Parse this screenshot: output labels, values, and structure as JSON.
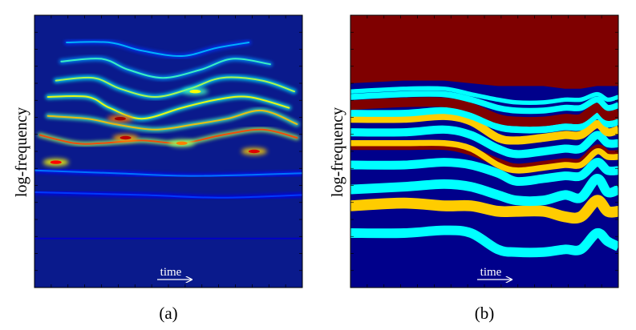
{
  "chart_data": [
    {
      "type": "heatmap",
      "panel_label": "(a)",
      "ylabel": "log-frequency",
      "time_label": "time",
      "colormap": [
        "#00007f",
        "#0000ff",
        "#00ffff",
        "#ffff00",
        "#ff0000",
        "#7f0000"
      ],
      "background_color": "#0a1a8c",
      "xlim": [
        0,
        1
      ],
      "ylim": [
        0,
        1
      ],
      "ridges": [
        {
          "points": [
            [
              0.02,
              0.56
            ],
            [
              0.15,
              0.53
            ],
            [
              0.25,
              0.53
            ],
            [
              0.4,
              0.54
            ],
            [
              0.55,
              0.53
            ],
            [
              0.7,
              0.56
            ],
            [
              0.85,
              0.58
            ],
            [
              0.98,
              0.55
            ]
          ],
          "intensity": 0.75
        },
        {
          "points": [
            [
              0.05,
              0.63
            ],
            [
              0.2,
              0.62
            ],
            [
              0.3,
              0.6
            ],
            [
              0.45,
              0.58
            ],
            [
              0.6,
              0.6
            ],
            [
              0.72,
              0.62
            ],
            [
              0.85,
              0.65
            ],
            [
              0.98,
              0.6
            ]
          ],
          "intensity": 0.65
        },
        {
          "points": [
            [
              0.05,
              0.7
            ],
            [
              0.2,
              0.7
            ],
            [
              0.28,
              0.66
            ],
            [
              0.4,
              0.62
            ],
            [
              0.55,
              0.66
            ],
            [
              0.68,
              0.69
            ],
            [
              0.8,
              0.7
            ],
            [
              0.95,
              0.66
            ]
          ],
          "intensity": 0.6
        },
        {
          "points": [
            [
              0.08,
              0.76
            ],
            [
              0.22,
              0.77
            ],
            [
              0.32,
              0.73
            ],
            [
              0.45,
              0.7
            ],
            [
              0.58,
              0.73
            ],
            [
              0.7,
              0.77
            ],
            [
              0.85,
              0.76
            ],
            [
              0.97,
              0.72
            ]
          ],
          "intensity": 0.55
        },
        {
          "points": [
            [
              0.1,
              0.83
            ],
            [
              0.25,
              0.84
            ],
            [
              0.35,
              0.8
            ],
            [
              0.48,
              0.77
            ],
            [
              0.62,
              0.8
            ],
            [
              0.74,
              0.84
            ],
            [
              0.88,
              0.82
            ]
          ],
          "intensity": 0.45
        },
        {
          "points": [
            [
              0.12,
              0.9
            ],
            [
              0.28,
              0.9
            ],
            [
              0.4,
              0.87
            ],
            [
              0.55,
              0.85
            ],
            [
              0.68,
              0.88
            ],
            [
              0.8,
              0.9
            ]
          ],
          "intensity": 0.35
        },
        {
          "points": [
            [
              0.0,
              0.43
            ],
            [
              0.3,
              0.42
            ],
            [
              0.6,
              0.41
            ],
            [
              1.0,
              0.42
            ]
          ],
          "intensity": 0.3
        },
        {
          "points": [
            [
              0.0,
              0.35
            ],
            [
              0.4,
              0.34
            ],
            [
              0.7,
              0.33
            ],
            [
              1.0,
              0.34
            ]
          ],
          "intensity": 0.25
        },
        {
          "points": [
            [
              0.0,
              0.18
            ],
            [
              0.5,
              0.18
            ],
            [
              1.0,
              0.18
            ]
          ],
          "intensity": 0.12
        }
      ],
      "hotspots": [
        {
          "t": 0.32,
          "f": 0.62,
          "intensity": 0.95
        },
        {
          "t": 0.34,
          "f": 0.55,
          "intensity": 0.9
        },
        {
          "t": 0.08,
          "f": 0.46,
          "intensity": 0.8
        },
        {
          "t": 0.82,
          "f": 0.5,
          "intensity": 0.85
        },
        {
          "t": 0.55,
          "f": 0.53,
          "intensity": 0.7
        },
        {
          "t": 0.6,
          "f": 0.72,
          "intensity": 0.6
        }
      ]
    },
    {
      "type": "heatmap",
      "panel_label": "(b)",
      "ylabel": "log-frequency",
      "time_label": "time",
      "background_color": "#00008b",
      "top_color": "#7f0000",
      "xlim": [
        0,
        1
      ],
      "ylim": [
        0,
        1
      ],
      "time_nodes": [
        0,
        0.2,
        0.35,
        0.45,
        0.55,
        0.62,
        0.72,
        0.8,
        0.86,
        0.92,
        0.96,
        1.0
      ],
      "top_boundary": [
        0.75,
        0.76,
        0.76,
        0.75,
        0.74,
        0.74,
        0.74,
        0.73,
        0.73,
        0.74,
        0.74,
        0.74
      ],
      "bands": [
        {
          "color": "#00ffff",
          "thickness": 0.035,
          "f": [
            0.2,
            0.2,
            0.21,
            0.2,
            0.14,
            0.13,
            0.13,
            0.14,
            0.14,
            0.2,
            0.17,
            0.15
          ]
        },
        {
          "color": "#ffcc00",
          "thickness": 0.04,
          "f": [
            0.3,
            0.31,
            0.3,
            0.3,
            0.28,
            0.28,
            0.28,
            0.26,
            0.26,
            0.32,
            0.28,
            0.28
          ]
        },
        {
          "color": "#00ffff",
          "thickness": 0.035,
          "f": [
            0.36,
            0.37,
            0.38,
            0.37,
            0.34,
            0.32,
            0.32,
            0.34,
            0.33,
            0.4,
            0.35,
            0.36
          ]
        },
        {
          "color": "#00ffff",
          "thickness": 0.032,
          "f": [
            0.45,
            0.45,
            0.46,
            0.45,
            0.42,
            0.39,
            0.4,
            0.41,
            0.41,
            0.46,
            0.43,
            0.43
          ]
        },
        {
          "color": "#7f0000",
          "thickness": 0.03,
          "f": [
            0.52,
            0.52,
            0.52,
            0.5,
            0.46,
            0.44,
            0.45,
            0.46,
            0.46,
            0.51,
            0.49,
            0.49
          ]
        },
        {
          "color": "#ffcc00",
          "thickness": 0.022,
          "f": [
            0.53,
            0.53,
            0.53,
            0.51,
            0.45,
            0.43,
            0.44,
            0.45,
            0.45,
            0.5,
            0.48,
            0.48
          ]
        },
        {
          "color": "#00ffff",
          "thickness": 0.03,
          "f": [
            0.57,
            0.57,
            0.58,
            0.56,
            0.51,
            0.49,
            0.5,
            0.51,
            0.51,
            0.56,
            0.53,
            0.53
          ]
        },
        {
          "color": "#ffcc00",
          "thickness": 0.03,
          "f": [
            0.62,
            0.62,
            0.63,
            0.61,
            0.55,
            0.54,
            0.55,
            0.56,
            0.56,
            0.6,
            0.57,
            0.58
          ]
        },
        {
          "color": "#00ffff",
          "thickness": 0.025,
          "f": [
            0.64,
            0.64,
            0.65,
            0.63,
            0.59,
            0.58,
            0.58,
            0.59,
            0.59,
            0.63,
            0.6,
            0.61
          ]
        },
        {
          "color": "#7f0000",
          "thickness": 0.035,
          "f": [
            0.67,
            0.68,
            0.68,
            0.66,
            0.62,
            0.61,
            0.61,
            0.62,
            0.62,
            0.66,
            0.63,
            0.64
          ]
        },
        {
          "color": "#00ffff",
          "thickness": 0.022,
          "f": [
            0.7,
            0.71,
            0.71,
            0.69,
            0.66,
            0.65,
            0.65,
            0.66,
            0.66,
            0.69,
            0.66,
            0.67
          ]
        },
        {
          "color": "#00ffff",
          "thickness": 0.016,
          "f": [
            0.72,
            0.73,
            0.73,
            0.71,
            0.69,
            0.68,
            0.68,
            0.69,
            0.69,
            0.71,
            0.69,
            0.7
          ]
        }
      ]
    }
  ]
}
